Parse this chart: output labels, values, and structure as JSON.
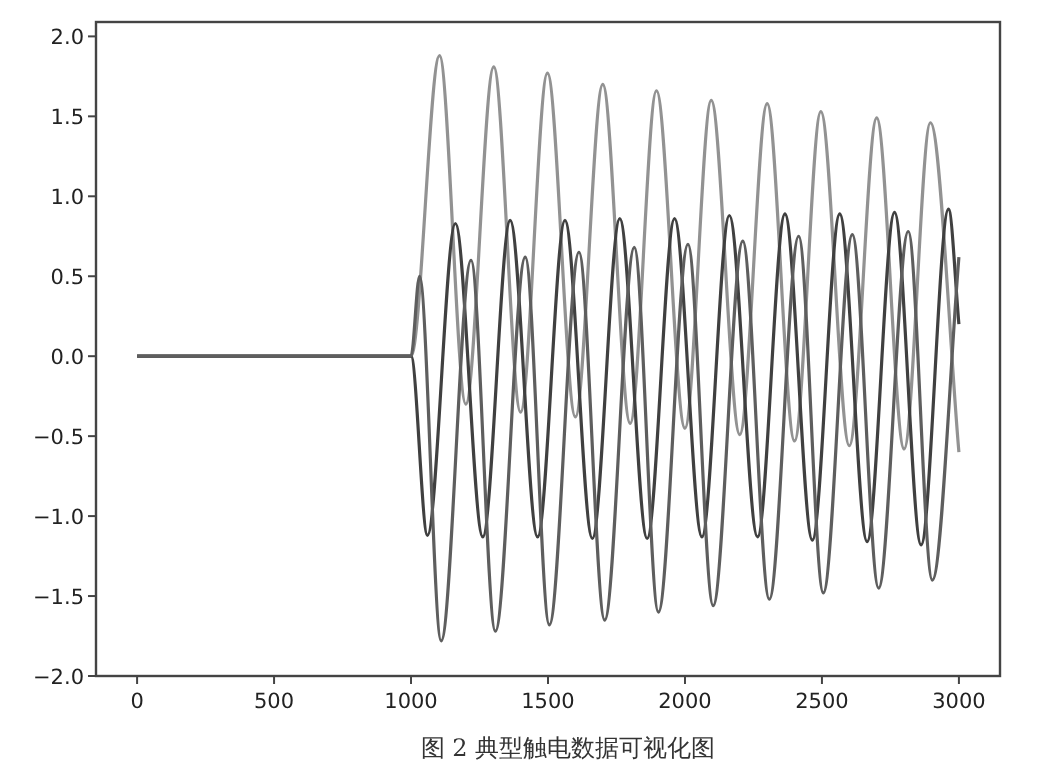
{
  "chart_data": {
    "type": "line",
    "annotations": [
      "图 2  典型触电数据可视化图"
    ],
    "xlim": [
      -150,
      3150
    ],
    "ylim": [
      -2.0,
      2.09
    ],
    "xticks": [
      0,
      500,
      1000,
      1500,
      2000,
      2500,
      3000
    ],
    "yticks": [
      {
        "value": -2,
        "label": "−2.0"
      },
      {
        "value": -1.5,
        "label": "−1.5"
      },
      {
        "value": -1,
        "label": "−1.0"
      },
      {
        "value": -0.5,
        "label": "−0.5"
      },
      {
        "value": 0,
        "label": "0.0"
      },
      {
        "value": 0.5,
        "label": "0.5"
      },
      {
        "value": 1,
        "label": "1.0"
      },
      {
        "value": 1.5,
        "label": "1.5"
      },
      {
        "value": 2,
        "label": "2.0"
      }
    ],
    "series": [
      {
        "color": "#929292",
        "x": [
          0,
          1000,
          1104,
          1200,
          1302,
          1400,
          1498,
          1600,
          1700,
          1800,
          1896,
          2000,
          2096,
          2200,
          2300,
          2400,
          2496,
          2600,
          2700,
          2800,
          2896,
          3000
        ],
        "values": [
          0,
          0,
          1.88,
          -0.3,
          1.81,
          -0.35,
          1.77,
          -0.38,
          1.7,
          -0.42,
          1.66,
          -0.45,
          1.6,
          -0.49,
          1.58,
          -0.53,
          1.53,
          -0.56,
          1.49,
          -0.58,
          1.46,
          -0.6
        ]
      },
      {
        "color": "#404040",
        "x": [
          0,
          1000,
          1060,
          1162,
          1262,
          1362,
          1462,
          1562,
          1662,
          1762,
          1862,
          1962,
          2062,
          2162,
          2265,
          2365,
          2465,
          2565,
          2665,
          2765,
          2862,
          2962,
          3000
        ],
        "values": [
          0,
          0,
          -1.12,
          0.83,
          -1.13,
          0.85,
          -1.13,
          0.85,
          -1.14,
          0.86,
          -1.14,
          0.86,
          -1.13,
          0.88,
          -1.13,
          0.89,
          -1.15,
          0.89,
          -1.16,
          0.9,
          -1.18,
          0.92,
          0.2
        ]
      },
      {
        "color": "#5e5e5e",
        "x": [
          0,
          1000,
          1031,
          1110,
          1219,
          1308,
          1417,
          1505,
          1613,
          1707,
          1815,
          1903,
          2011,
          2103,
          2211,
          2308,
          2415,
          2505,
          2611,
          2707,
          2815,
          2903,
          3000
        ],
        "values": [
          0,
          0,
          0.5,
          -1.78,
          0.6,
          -1.72,
          0.62,
          -1.68,
          0.65,
          -1.65,
          0.68,
          -1.6,
          0.7,
          -1.56,
          0.72,
          -1.52,
          0.75,
          -1.48,
          0.76,
          -1.45,
          0.78,
          -1.4,
          0.62
        ]
      }
    ]
  }
}
